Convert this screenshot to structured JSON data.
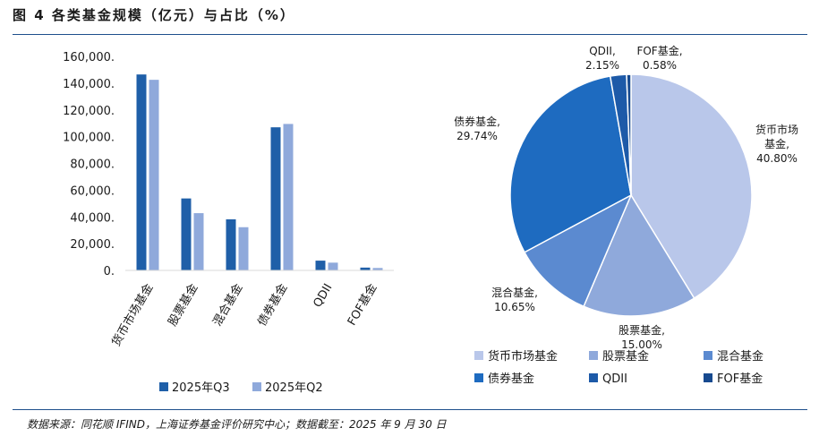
{
  "figure": {
    "title": "图 4 各类基金规模（亿元）与占比（%）",
    "source": "数据来源：同花顺 IFIND，上海证券基金评价研究中心；数据截至：2025 年 9 月 30 日"
  },
  "colors": {
    "rule": "#1e4f8c",
    "q3": "#1f5fa8",
    "q2": "#8fa9db",
    "pie": [
      "#b9c7ea",
      "#8fa9db",
      "#5b8ad0",
      "#1e6bc0",
      "#1d5aa8",
      "#174a8f"
    ]
  },
  "chart_data": [
    {
      "type": "bar",
      "categories": [
        "货币市场基金",
        "股票基金",
        "混合基金",
        "债券基金",
        "QDII",
        "FOF基金"
      ],
      "series": [
        {
          "name": "2025年Q3",
          "values": [
            146500,
            53800,
            38200,
            107000,
            7300,
            2100
          ]
        },
        {
          "name": "2025年Q2",
          "values": [
            142500,
            42800,
            32300,
            109500,
            5800,
            1800
          ]
        }
      ],
      "ylim": [
        0,
        160000
      ],
      "yticks": [
        "0.",
        "20,000.",
        "40,000.",
        "60,000.",
        "80,000.",
        "100,000.",
        "120,000.",
        "140,000.",
        "160,000."
      ],
      "legend_position": "bottom"
    },
    {
      "type": "pie",
      "labels": [
        "货币市场基金",
        "股票基金",
        "混合基金",
        "债券基金",
        "QDII",
        "FOF基金"
      ],
      "values": [
        40.8,
        15.0,
        10.65,
        29.74,
        2.15,
        0.58
      ],
      "data_labels": [
        {
          "name": "货币市场\n基金,",
          "value": "40.80%"
        },
        {
          "name": "股票基金,",
          "value": "15.00%"
        },
        {
          "name": "混合基金,",
          "value": "10.65%"
        },
        {
          "name": "债券基金,",
          "value": "29.74%"
        },
        {
          "name": "QDII,",
          "value": "2.15%"
        },
        {
          "name": "FOF基金,",
          "value": "0.58%"
        }
      ],
      "legend_position": "bottom"
    }
  ]
}
